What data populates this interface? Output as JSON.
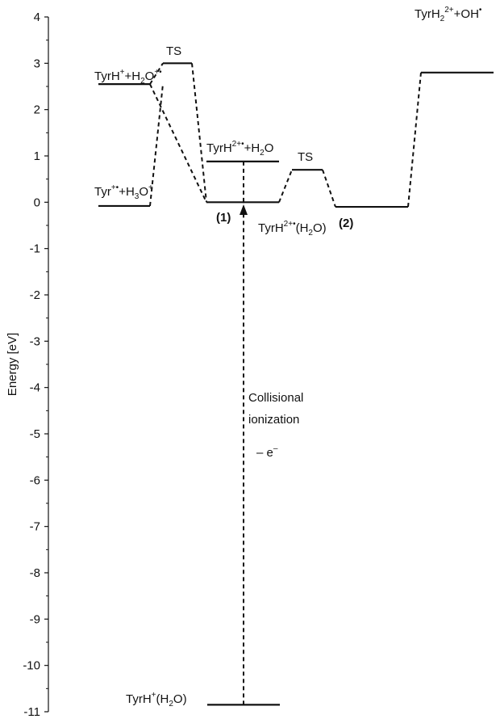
{
  "chart_data": {
    "type": "energy_diagram",
    "ylabel": "Energy [eV]",
    "ylim": [
      -11,
      4
    ],
    "yticks": [
      "4",
      "3",
      "2",
      "1",
      "0",
      "-1",
      "-2",
      "-3",
      "-4",
      "-5",
      "-6",
      "-7",
      "-8",
      "-9",
      "-10",
      "-11"
    ],
    "levels": [
      {
        "id": "tyrh_h2o_plus",
        "energy": 2.55
      },
      {
        "id": "tyr_h3o",
        "energy": -0.08
      },
      {
        "id": "ts1",
        "energy": 3.0
      },
      {
        "id": "tyrh2_h2o",
        "energy": 0.88
      },
      {
        "id": "complex1",
        "energy": 0.0
      },
      {
        "id": "ts2",
        "energy": 0.7
      },
      {
        "id": "complex2",
        "energy": -0.1
      },
      {
        "id": "tyrh2_oh",
        "energy": 2.8
      },
      {
        "id": "ground",
        "energy": -10.85
      }
    ],
    "labels": {
      "tyrh_h2o_plus": {
        "t1": "TyrH",
        "s1": "+",
        "t2": "+H",
        "b1": "2",
        "t3": "O",
        "s2": "+•"
      },
      "ts1": "TS",
      "tyr_h3o": {
        "t1": "Tyr",
        "s1": "+•",
        "t2": "+H",
        "b1": "3",
        "t3": "O",
        "s2": "+"
      },
      "tyrh2_h2o": {
        "t1": "TyrH",
        "s1": "2+•",
        "t2": "+H",
        "b1": "2",
        "t3": "O"
      },
      "complex1": "(1)",
      "ts2": "TS",
      "complex2_name": {
        "t1": "TyrH",
        "s1": "2+•",
        "t2": "(H",
        "b1": "2",
        "t3": "O)"
      },
      "complex2": "(2)",
      "tyrh2_oh": {
        "t1": "TyrH",
        "b1": "2",
        "s1": "2+",
        "t2": "+OH",
        "s2": "•"
      },
      "ground": {
        "t1": "TyrH",
        "s1": "+",
        "t2": "(H",
        "b1": "2",
        "t3": "O)"
      },
      "ionization_line1": "Collisional",
      "ionization_line2": "ionization",
      "electron": {
        "t1": "– e",
        "s1": "–"
      }
    }
  }
}
